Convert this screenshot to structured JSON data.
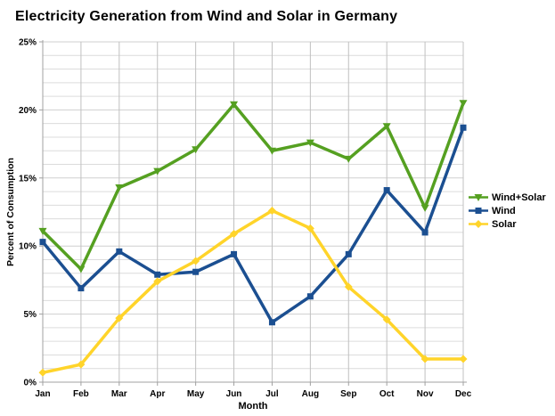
{
  "chart_data": {
    "type": "line",
    "title": "Electricity Generation from Wind and Solar in Germany",
    "xlabel": "Month",
    "ylabel": "Percent of Consumption",
    "x_categories": [
      "Jan",
      "Feb",
      "Mar",
      "Apr",
      "May",
      "Jun",
      "Jul",
      "Aug",
      "Sep",
      "Oct",
      "Nov",
      "Dec"
    ],
    "ylim": [
      0,
      25
    ],
    "y_tick_step": 5,
    "y_tick_labels": [
      "0%",
      "5%",
      "10%",
      "15%",
      "20%",
      "25%"
    ],
    "minor_grid_step_percent": 1,
    "grid": true,
    "legend_position": "right",
    "series": [
      {
        "name": "Wind+Solar",
        "color": "#55A021",
        "marker": "triangle-down",
        "values": [
          11.1,
          8.3,
          14.3,
          15.5,
          17.1,
          20.4,
          17.0,
          17.6,
          16.4,
          18.8,
          12.8,
          20.5
        ]
      },
      {
        "name": "Wind",
        "color": "#1B4F91",
        "marker": "square",
        "values": [
          10.3,
          6.9,
          9.6,
          7.9,
          8.1,
          9.4,
          4.4,
          6.3,
          9.4,
          14.1,
          11.0,
          18.7
        ]
      },
      {
        "name": "Solar",
        "color": "#FFD42A",
        "marker": "diamond",
        "values": [
          0.7,
          1.3,
          4.7,
          7.4,
          8.9,
          10.9,
          12.6,
          11.3,
          7.0,
          4.6,
          1.7,
          1.7
        ]
      }
    ],
    "style": {
      "grid_color_h": "#dcdcdc",
      "grid_color_h_major": "#cfcfcf",
      "grid_color_v": "#c0c0c0",
      "axis_color": "#a0a0a0",
      "text_color": "#000000",
      "background": "#ffffff"
    }
  }
}
